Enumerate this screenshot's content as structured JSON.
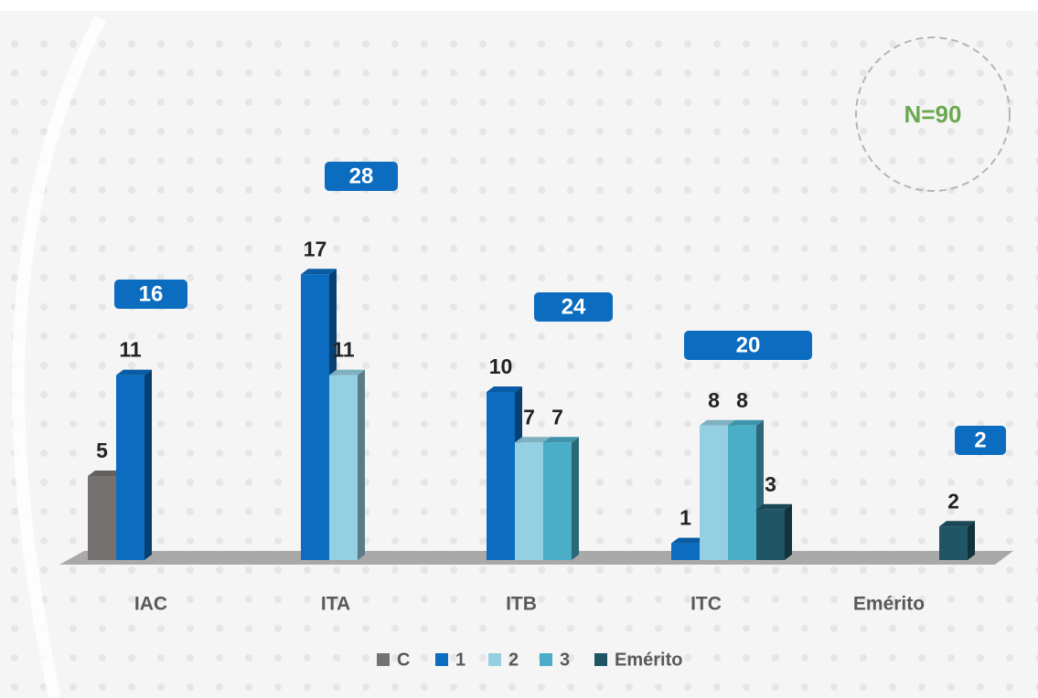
{
  "chart_data": {
    "type": "bar3d",
    "categories": [
      "IAC",
      "ITA",
      "ITB",
      "ITC",
      "Emérito"
    ],
    "series": [
      {
        "name": "C",
        "color": "#767171",
        "values": [
          5,
          null,
          null,
          null,
          null
        ]
      },
      {
        "name": "1",
        "color": "#0b6cc0",
        "values": [
          11,
          17,
          10,
          1,
          null
        ]
      },
      {
        "name": "2",
        "color": "#94cfe2",
        "values": [
          null,
          11,
          7,
          8,
          null
        ]
      },
      {
        "name": "3",
        "color": "#4aaec8",
        "values": [
          null,
          null,
          7,
          8,
          null
        ]
      },
      {
        "name": "Emérito",
        "color": "#1f5564",
        "values": [
          null,
          null,
          null,
          3,
          2
        ]
      }
    ],
    "totals": [
      16,
      28,
      24,
      20,
      2
    ],
    "annotation": "N=90",
    "legend": "bottom"
  }
}
